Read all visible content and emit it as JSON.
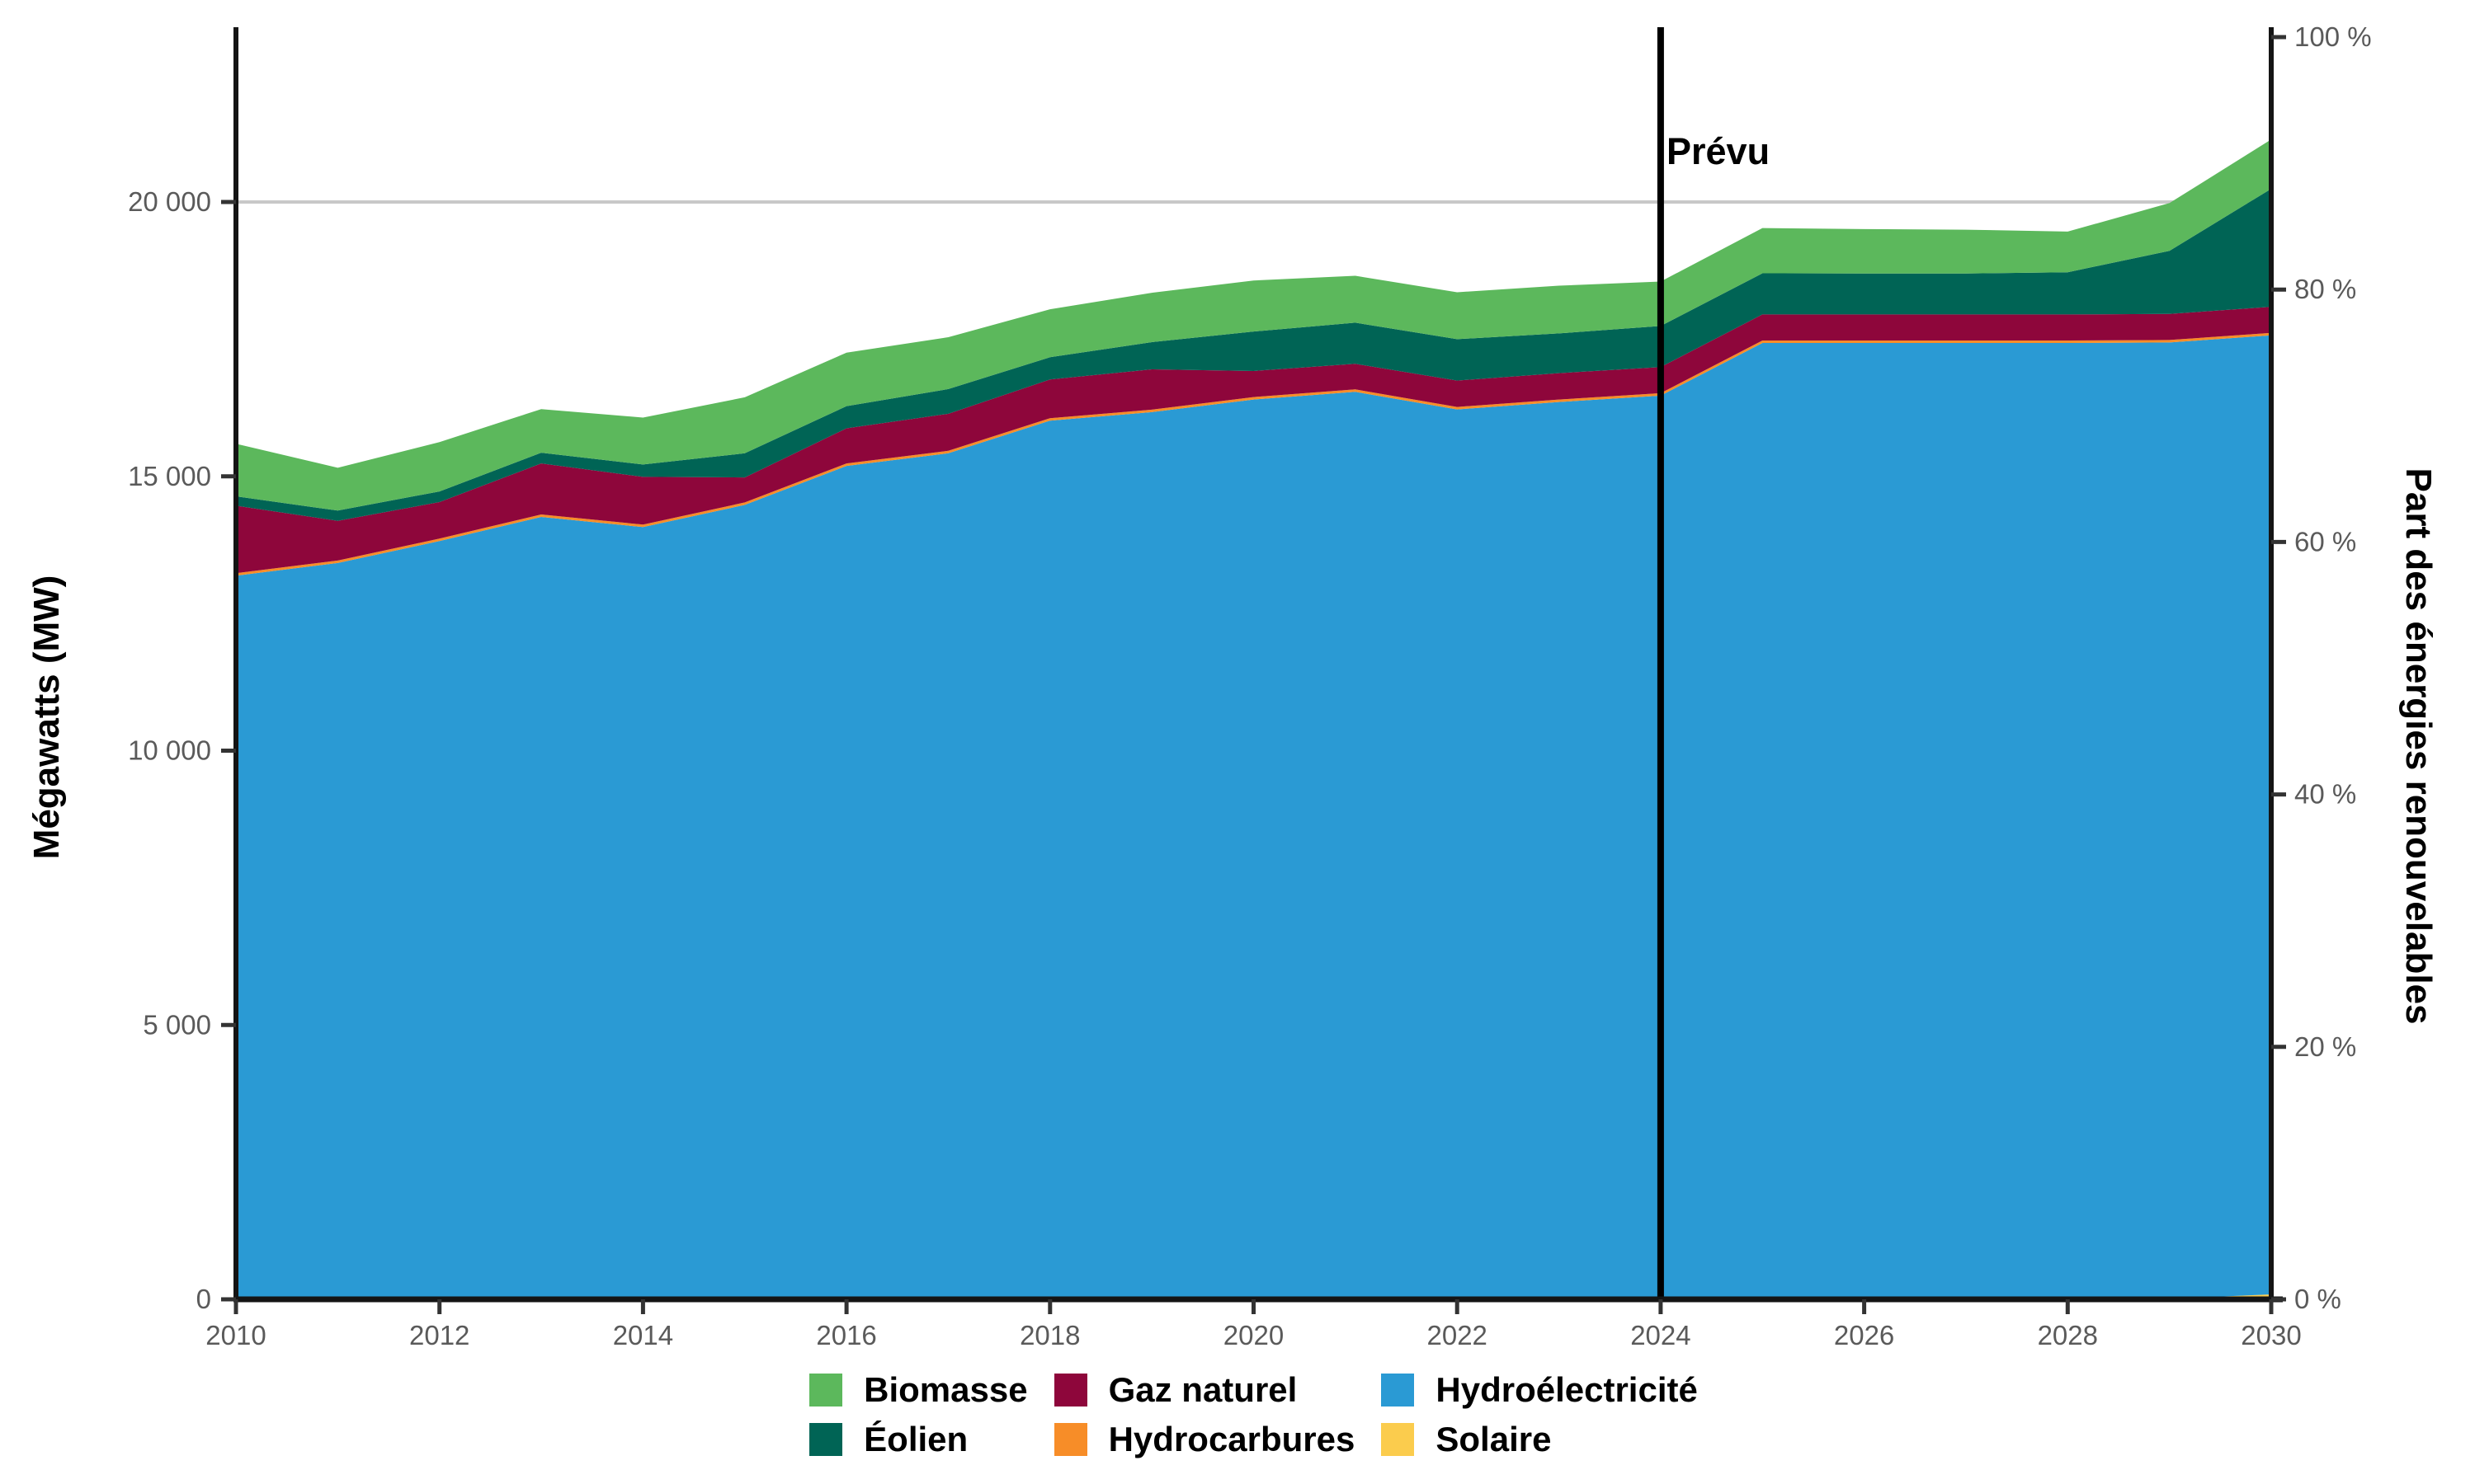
{
  "chart_data": {
    "type": "area",
    "stacked": true,
    "stack_order": "bottom-to-top",
    "x": [
      2010,
      2011,
      2012,
      2013,
      2014,
      2015,
      2016,
      2017,
      2018,
      2019,
      2020,
      2021,
      2022,
      2023,
      2024,
      2025,
      2026,
      2027,
      2028,
      2029,
      2030
    ],
    "series": [
      {
        "key": "solaire",
        "name": "Solaire",
        "color": "#FBCC4D",
        "values": [
          0,
          0,
          0,
          0,
          0,
          0,
          0,
          0,
          0,
          0,
          0,
          0,
          0,
          0,
          0,
          0,
          0,
          0,
          0,
          10,
          90
        ]
      },
      {
        "key": "hydroelectricite",
        "name": "Hydroélectricité",
        "color": "#2A9AD4",
        "values": [
          13190,
          13420,
          13820,
          14260,
          14075,
          14480,
          15190,
          15420,
          16015,
          16170,
          16400,
          16540,
          16220,
          16355,
          16470,
          17430,
          17430,
          17430,
          17430,
          17430,
          17480
        ]
      },
      {
        "key": "hydrocarbures",
        "name": "Hydrocarbures",
        "color": "#F78D28",
        "values": [
          45,
          45,
          45,
          45,
          45,
          45,
          45,
          45,
          45,
          45,
          45,
          45,
          45,
          45,
          45,
          45,
          45,
          45,
          45,
          45,
          45
        ]
      },
      {
        "key": "gaz-naturel",
        "name": "Gaz naturel",
        "color": "#8E063B",
        "values": [
          1230,
          725,
          665,
          930,
          870,
          455,
          640,
          675,
          705,
          735,
          475,
          465,
          480,
          480,
          475,
          475,
          475,
          475,
          475,
          475,
          475
        ]
      },
      {
        "key": "eolien",
        "name": "Éolien",
        "color": "#006455",
        "values": [
          170,
          185,
          195,
          195,
          225,
          440,
          405,
          450,
          405,
          495,
          720,
          750,
          755,
          725,
          750,
          750,
          745,
          745,
          770,
          1150,
          2150
        ]
      },
      {
        "key": "biomasse",
        "name": "Biomasse",
        "color": "#5CB85C",
        "values": [
          960,
          780,
          900,
          795,
          855,
          1020,
          975,
          945,
          875,
          900,
          930,
          855,
          855,
          870,
          810,
          825,
          810,
          800,
          740,
          870,
          900
        ]
      }
    ],
    "totals": [
      15595,
      15155,
      15625,
      16225,
      16070,
      16440,
      17255,
      17535,
      18045,
      18345,
      18570,
      18655,
      18355,
      18475,
      18550,
      19525,
      19505,
      19495,
      19460,
      19980,
      21140
    ],
    "ylabel": "Mégawatts (MW)",
    "y2label": "Part des énergies renouvelables",
    "xlabel": "",
    "title": "",
    "ylim": [
      0,
      23200
    ],
    "y2lim": [
      0,
      100
    ],
    "xlim": [
      2010,
      2030
    ],
    "grid": "single horizontal gridline at 20 000 MW",
    "gridlines_mw": [
      20000
    ],
    "y_ticks": [
      {
        "value": 0,
        "label": "0"
      },
      {
        "value": 5000,
        "label": "5 000"
      },
      {
        "value": 10000,
        "label": "10 000"
      },
      {
        "value": 15000,
        "label": "15 000"
      },
      {
        "value": 20000,
        "label": "20 000"
      }
    ],
    "x_ticks": [
      {
        "value": 2010,
        "label": "2010"
      },
      {
        "value": 2012,
        "label": "2012"
      },
      {
        "value": 2014,
        "label": "2014"
      },
      {
        "value": 2016,
        "label": "2016"
      },
      {
        "value": 2018,
        "label": "2018"
      },
      {
        "value": 2020,
        "label": "2020"
      },
      {
        "value": 2022,
        "label": "2022"
      },
      {
        "value": 2024,
        "label": "2024"
      },
      {
        "value": 2026,
        "label": "2026"
      },
      {
        "value": 2028,
        "label": "2028"
      },
      {
        "value": 2030,
        "label": "2030"
      }
    ],
    "y2_ticks": [
      {
        "value": 0,
        "label": "0 %"
      },
      {
        "value": 20,
        "label": "20 %"
      },
      {
        "value": 40,
        "label": "40 %"
      },
      {
        "value": 60,
        "label": "60 %"
      },
      {
        "value": 80,
        "label": "80 %"
      },
      {
        "value": 100,
        "label": "100 %"
      }
    ],
    "forecast_line": {
      "year": 2024,
      "label": "Prévu"
    },
    "legend_position": "bottom"
  },
  "legend": {
    "items": [
      {
        "label": "Biomasse",
        "color": "#5CB85C"
      },
      {
        "label": "Éolien",
        "color": "#006455"
      },
      {
        "label": "Gaz naturel",
        "color": "#8E063B"
      },
      {
        "label": "Hydrocarbures",
        "color": "#F78D28"
      },
      {
        "label": "Hydroélectricité",
        "color": "#2A9AD4"
      },
      {
        "label": "Solaire",
        "color": "#FBCC4D"
      }
    ]
  },
  "colors": {
    "axis_line": "#141414",
    "tick_text": "#5a5a5a",
    "gridline": "#c8c8c8",
    "forecast_line": "#000000",
    "background": "#ffffff"
  }
}
